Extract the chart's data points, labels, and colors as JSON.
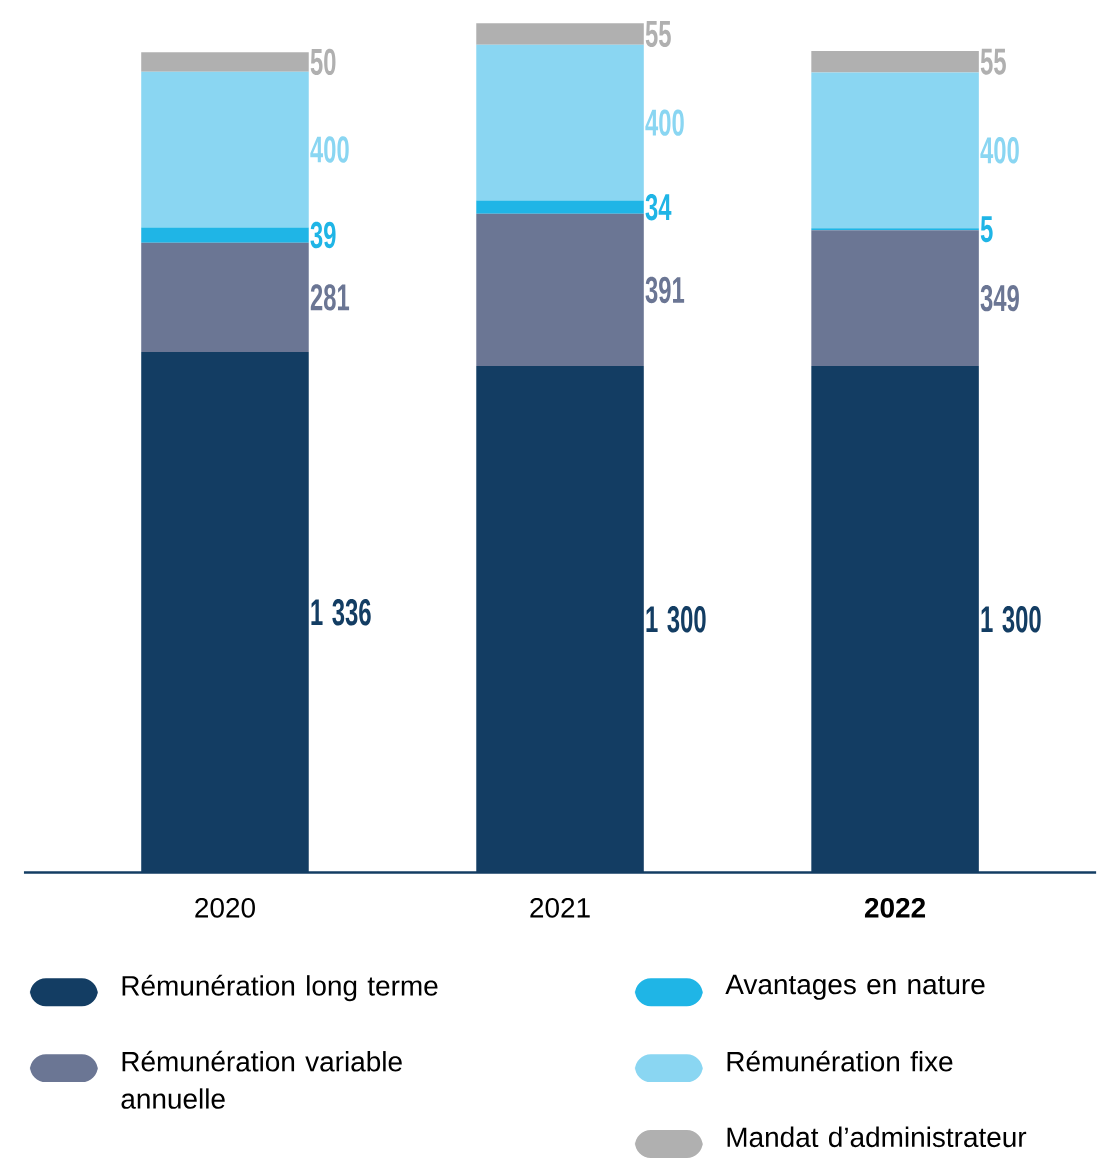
{
  "chart_data": {
    "type": "bar",
    "stacked": true,
    "legend": "bottom",
    "categories": [
      "2020",
      "2021",
      "**2022**"
    ],
    "series": [
      {
        "name": "Rémunération long terme",
        "color": "#133d63",
        "values": [
          1336,
          1300,
          1300
        ],
        "value_labels": [
          "1 336",
          "1 300",
          "1 300"
        ]
      },
      {
        "name": "Rémunération variable annuelle",
        "color": "#6b7694",
        "values": [
          281,
          391,
          349
        ],
        "value_labels": [
          "281",
          "391",
          "349"
        ]
      },
      {
        "name": "Avantages en nature",
        "color": "#1fb5e6",
        "values": [
          39,
          34,
          5
        ],
        "value_labels": [
          "39",
          "34",
          "5"
        ]
      },
      {
        "name": "Rémunération fixe",
        "color": "#8ad6f2",
        "values": [
          400,
          400,
          400
        ],
        "value_labels": [
          "400",
          "400",
          "400"
        ]
      },
      {
        "name": "Mandat d’administrateur",
        "color": "#b0b0b0",
        "values": [
          50,
          55,
          55
        ],
        "value_labels": [
          "50",
          "55",
          "55"
        ]
      }
    ]
  }
}
